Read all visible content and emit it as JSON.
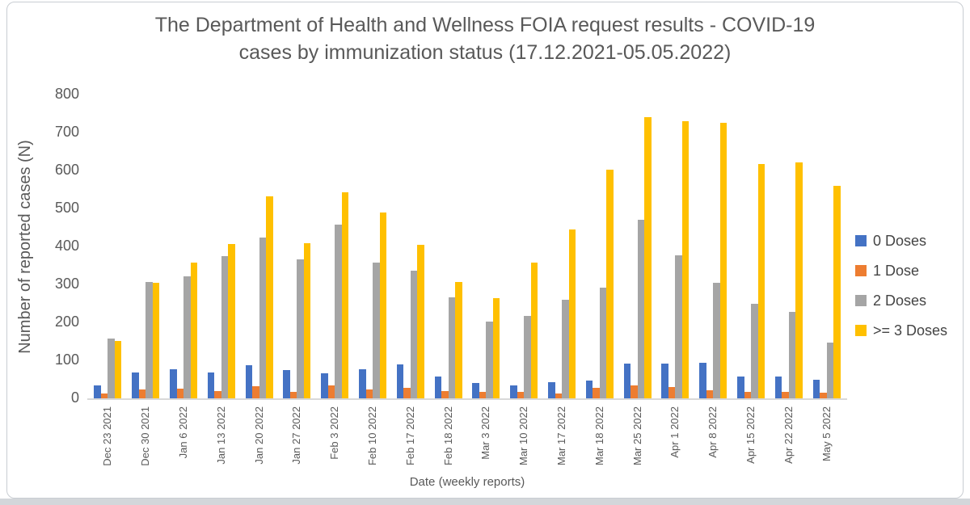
{
  "page": {
    "bottom_strip_color": "#d3d6da",
    "card_border_color": "#c9cdd2"
  },
  "chart_data": {
    "type": "bar",
    "title": "The Department of Health and Wellness FOIA request results - COVID-19 cases by immunization status (17.12.2021-05.05.2022)",
    "title_lines": [
      "The Department of Health and Wellness FOIA request results - COVID-19",
      "cases by immunization status (17.12.2021-05.05.2022)"
    ],
    "xlabel": "Date (weekly reports)",
    "ylabel": "Number of reported cases (N)",
    "ylim": [
      0,
      800
    ],
    "y_ticks": [
      800,
      700,
      600,
      500,
      400,
      300,
      200,
      100,
      0
    ],
    "grid": false,
    "legend_position": "right",
    "categories": [
      "Dec 23 2021",
      "Dec 30 2021",
      "Jan 6 2022",
      "Jan 13 2022",
      "Jan 20 2022",
      "Jan 27 2022",
      "Feb 3 2022",
      "Feb 10 2022",
      "Feb 17 2022",
      "Feb 18 2022",
      "Mar 3 2022",
      "Mar 10 2022",
      "Mar 17 2022",
      "Mar 18 2022",
      "Mar 25 2022",
      "Apr 1 2022",
      "Apr 8 2022",
      "Apr 15 2022",
      "Apr 22 2022",
      "May 5 2022"
    ],
    "series": [
      {
        "name": "0 Doses",
        "color": "#4472C4",
        "values": [
          34,
          68,
          76,
          68,
          87,
          74,
          66,
          76,
          89,
          57,
          40,
          34,
          42,
          46,
          91,
          92,
          93,
          57,
          58,
          48
        ]
      },
      {
        "name": "1 Dose",
        "color": "#ED7D31",
        "values": [
          13,
          23,
          25,
          20,
          31,
          18,
          35,
          24,
          28,
          19,
          17,
          16,
          13,
          27,
          34,
          30,
          21,
          17,
          18,
          14
        ]
      },
      {
        "name": "2 Doses",
        "color": "#A5A5A5",
        "values": [
          158,
          306,
          321,
          374,
          423,
          365,
          457,
          357,
          336,
          265,
          203,
          216,
          259,
          292,
          471,
          376,
          304,
          248,
          228,
          146
        ]
      },
      {
        "name": ">= 3 Doses",
        "color": "#FFC000",
        "values": [
          152,
          305,
          358,
          406,
          532,
          409,
          543,
          489,
          404,
          307,
          264,
          358,
          444,
          603,
          740,
          729,
          725,
          617,
          622,
          560
        ]
      }
    ]
  }
}
